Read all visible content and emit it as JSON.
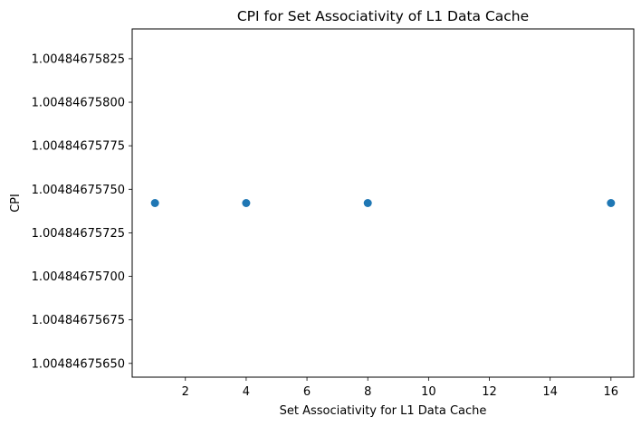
{
  "chart_data": {
    "type": "scatter",
    "title": "CPI for Set Associativity of L1 Data Cache",
    "xlabel": "Set Associativity for L1 Data Cache",
    "ylabel": "CPI",
    "x": [
      1,
      4,
      8,
      16
    ],
    "y": [
      1.004846757421,
      1.004846757421,
      1.004846757421,
      1.004846757421
    ],
    "xlim": [
      0.25,
      16.75
    ],
    "ylim": [
      1.004846756421,
      1.004846758421
    ],
    "xticks": [
      2,
      4,
      6,
      8,
      10,
      12,
      14,
      16
    ],
    "xtick_labels": [
      "2",
      "4",
      "6",
      "8",
      "10",
      "12",
      "14",
      "16"
    ],
    "yticks": [
      1.0048467565,
      1.00484675675,
      1.004846757,
      1.00484675725,
      1.0048467575,
      1.00484675775,
      1.004846758,
      1.00484675825
    ],
    "ytick_labels": [
      "1.00484675650",
      "1.00484675675",
      "1.00484675700",
      "1.00484675725",
      "1.00484675750",
      "1.00484675775",
      "1.00484675800",
      "1.00484675825"
    ],
    "grid": false,
    "marker_color": "#1f77b4"
  }
}
